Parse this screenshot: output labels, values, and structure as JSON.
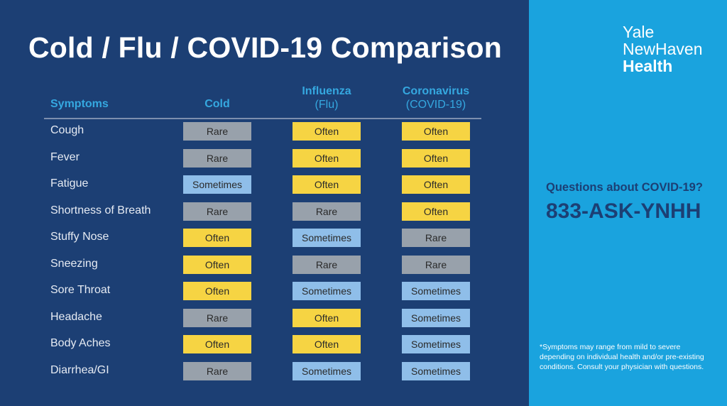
{
  "title": "Cold / Flu / COVID-19 Comparison",
  "headers": {
    "symptoms": "Symptoms",
    "cold": "Cold",
    "flu": "Influenza",
    "flu_sub": "(Flu)",
    "covid": "Coronavirus",
    "covid_sub": "(COVID-19)"
  },
  "rows": [
    {
      "symptom": "Cough",
      "cold": "Rare",
      "flu": "Often",
      "covid": "Often"
    },
    {
      "symptom": "Fever",
      "cold": "Rare",
      "flu": "Often",
      "covid": "Often"
    },
    {
      "symptom": "Fatigue",
      "cold": "Sometimes",
      "flu": "Often",
      "covid": "Often"
    },
    {
      "symptom": "Shortness of Breath",
      "cold": "Rare",
      "flu": "Rare",
      "covid": "Often"
    },
    {
      "symptom": "Stuffy Nose",
      "cold": "Often",
      "flu": "Sometimes",
      "covid": "Rare"
    },
    {
      "symptom": "Sneezing",
      "cold": "Often",
      "flu": "Rare",
      "covid": "Rare"
    },
    {
      "symptom": "Sore Throat",
      "cold": "Often",
      "flu": "Sometimes",
      "covid": "Sometimes"
    },
    {
      "symptom": "Headache",
      "cold": "Rare",
      "flu": "Often",
      "covid": "Sometimes"
    },
    {
      "symptom": "Body Aches",
      "cold": "Often",
      "flu": "Often",
      "covid": "Sometimes"
    },
    {
      "symptom": "Diarrhea/GI",
      "cold": "Rare",
      "flu": "Sometimes",
      "covid": "Sometimes"
    }
  ],
  "logo": {
    "line1": "Yale",
    "line2": "NewHaven",
    "line3": "Health"
  },
  "contact": {
    "question": "Questions about COVID-19?",
    "phone": "833-ASK-YNHH"
  },
  "footnote": "*Symptoms may range from mild to severe depending on individual health and/or pre-existing conditions. Consult your physician with questions.",
  "colors": {
    "navy": "#1c3f74",
    "sky": "#1aa3de",
    "rare": "#98a1ab",
    "often": "#f6d443",
    "sometimes": "#8fbee9"
  }
}
